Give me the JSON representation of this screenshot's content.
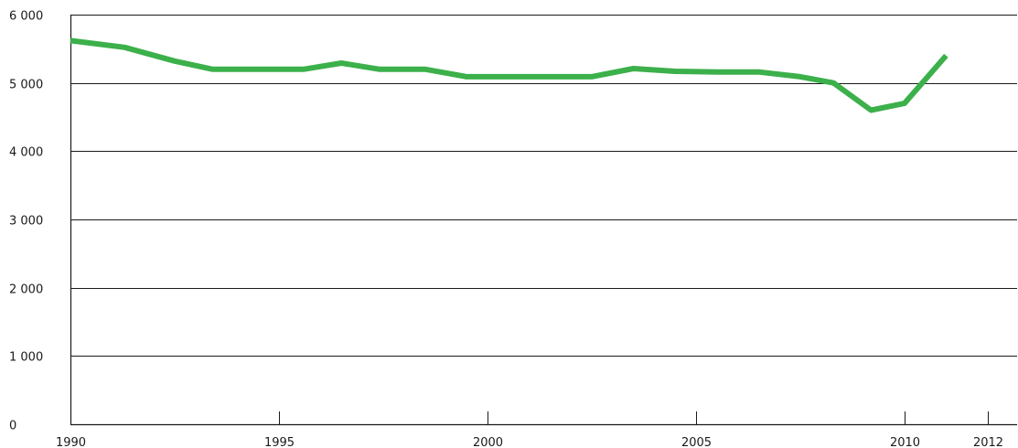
{
  "chart_data": {
    "type": "line",
    "title": "",
    "xlabel": "",
    "ylabel": "",
    "ylim": [
      0,
      6000
    ],
    "xlim": [
      1990,
      2012
    ],
    "grid": "horizontal",
    "colors": {
      "series": "#3cb04a",
      "grid": "#1a1a1a",
      "text": "#1a1a1a"
    },
    "y_ticks": [
      {
        "value": 0,
        "label": "0"
      },
      {
        "value": 1000,
        "label": "1 000"
      },
      {
        "value": 2000,
        "label": "2 000"
      },
      {
        "value": 3000,
        "label": "3 000"
      },
      {
        "value": 4000,
        "label": "4 000"
      },
      {
        "value": 5000,
        "label": "5 000"
      },
      {
        "value": 6000,
        "label": "6 000"
      }
    ],
    "x_ticks": [
      {
        "value": 1990,
        "label": "1990"
      },
      {
        "value": 1995,
        "label": "1995"
      },
      {
        "value": 2000,
        "label": "2000"
      },
      {
        "value": 2005,
        "label": "2005"
      },
      {
        "value": 2010,
        "label": "2010"
      },
      {
        "value": 2012,
        "label": "2012"
      }
    ],
    "series": [
      {
        "x": [
          1990,
          1991.3,
          1992.5,
          1993.4,
          1995.6,
          1996.5,
          1997.4,
          1998.5,
          1999.5,
          2002.5,
          2003.5,
          2004.5,
          2005.5,
          2006.5,
          2007.5,
          2008.3,
          2009.2,
          2010,
          2011
        ],
        "values": [
          5620,
          5520,
          5320,
          5200,
          5200,
          5290,
          5200,
          5200,
          5090,
          5090,
          5210,
          5170,
          5160,
          5160,
          5090,
          5000,
          4600,
          4700,
          5400
        ]
      }
    ]
  }
}
